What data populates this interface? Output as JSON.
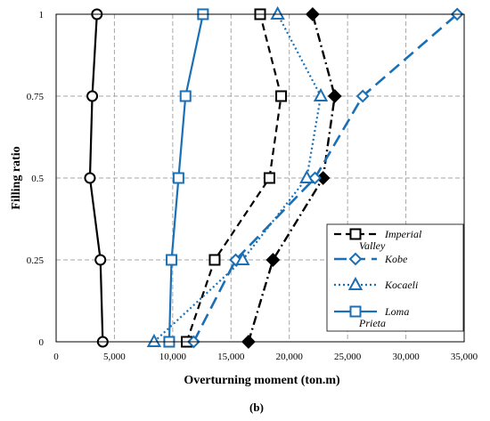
{
  "chart_data": {
    "type": "line",
    "title": "",
    "xlabel": "Overturning moment (ton.m)",
    "ylabel": "Filling ratio",
    "panel_label": "(b)",
    "xlim": [
      0,
      35000
    ],
    "ylim": [
      0,
      1
    ],
    "xticks": [
      0,
      5000,
      10000,
      15000,
      20000,
      25000,
      30000,
      35000
    ],
    "xtick_labels": [
      "0",
      "5,000",
      "10,000",
      "15,000",
      "20,000",
      "25,000",
      "30,000",
      "35,000"
    ],
    "yticks": [
      0,
      0.25,
      0.5,
      0.75,
      1
    ],
    "ytick_labels": [
      "0",
      "0.25",
      "0.5",
      "0.75",
      "1"
    ],
    "grid": true,
    "legend_position": "bottom-right",
    "series": [
      {
        "name": "",
        "color": "#000000",
        "line_style": "solid",
        "marker": "circle-open",
        "points": [
          [
            4000,
            0
          ],
          [
            3800,
            0.25
          ],
          [
            2900,
            0.5
          ],
          [
            3100,
            0.75
          ],
          [
            3500,
            1
          ]
        ]
      },
      {
        "name": "",
        "color": "#000000",
        "line_style": "dash-dot",
        "marker": "diamond-filled",
        "points": [
          [
            16500,
            0
          ],
          [
            18600,
            0.25
          ],
          [
            22900,
            0.5
          ],
          [
            23900,
            0.75
          ],
          [
            22000,
            1
          ]
        ]
      },
      {
        "name": "Imperial Valley",
        "color": "#000000",
        "line_style": "dashed",
        "marker": "square-open",
        "points": [
          [
            11200,
            0
          ],
          [
            13600,
            0.25
          ],
          [
            18300,
            0.5
          ],
          [
            19300,
            0.75
          ],
          [
            17500,
            1
          ]
        ]
      },
      {
        "name": "Kobe",
        "color": "#1a6fb5",
        "line_style": "long-dash",
        "marker": "diamond-open",
        "points": [
          [
            11800,
            0
          ],
          [
            15400,
            0.25
          ],
          [
            22200,
            0.5
          ],
          [
            26300,
            0.75
          ],
          [
            34400,
            1
          ]
        ]
      },
      {
        "name": "Kocaeli",
        "color": "#1a6fb5",
        "line_style": "dotted",
        "marker": "triangle-open",
        "points": [
          [
            8400,
            0
          ],
          [
            16000,
            0.25
          ],
          [
            21500,
            0.5
          ],
          [
            22700,
            0.75
          ],
          [
            19000,
            1
          ]
        ]
      },
      {
        "name": "Loma Prieta",
        "color": "#1a6fb5",
        "line_style": "solid",
        "marker": "square-open",
        "points": [
          [
            9700,
            0
          ],
          [
            9900,
            0.25
          ],
          [
            10500,
            0.5
          ],
          [
            11100,
            0.75
          ],
          [
            12600,
            1
          ]
        ]
      }
    ]
  }
}
